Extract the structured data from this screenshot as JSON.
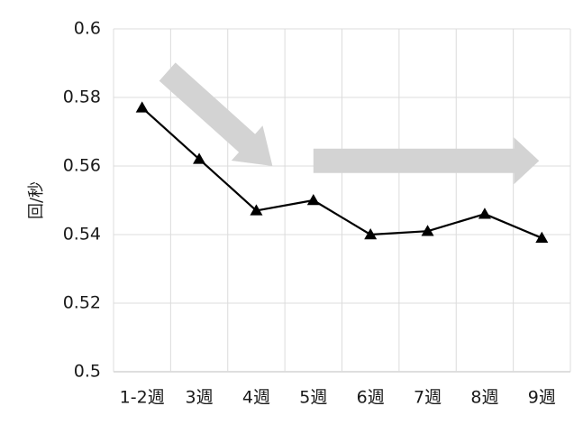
{
  "chart_data": {
    "type": "line",
    "ylabel": "回/秒",
    "categories": [
      "1-2週",
      "3週",
      "4週",
      "5週",
      "6週",
      "7週",
      "8週",
      "9週"
    ],
    "series": [
      {
        "values": [
          0.577,
          0.562,
          0.547,
          0.55,
          0.54,
          0.541,
          0.546,
          0.539
        ]
      }
    ],
    "ylim": [
      0.5,
      0.6
    ],
    "yticks": [
      "0.5",
      "0.52",
      "0.54",
      "0.56",
      "0.58",
      "0.6"
    ],
    "grid": true,
    "marker": "triangle",
    "line_color": "#000000",
    "annotation_color": "#d3d3d3",
    "annotations": [
      {
        "type": "arrow",
        "direction": "down-right",
        "from_category": "1-2週",
        "to_category": "4週"
      },
      {
        "type": "arrow",
        "direction": "right",
        "from_category": "5週",
        "to_category": "9週"
      }
    ]
  }
}
